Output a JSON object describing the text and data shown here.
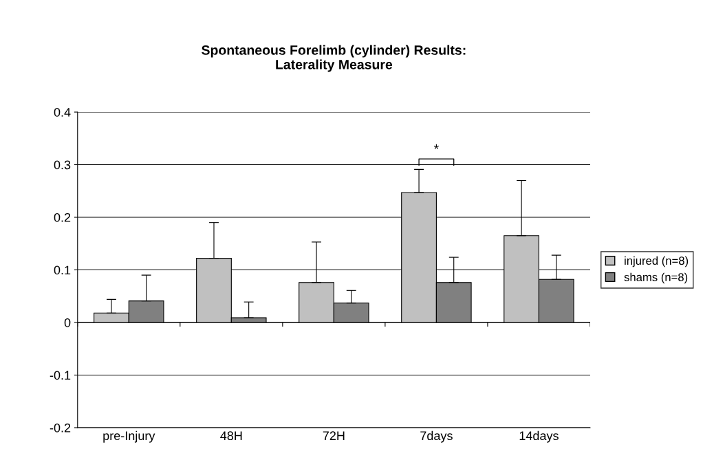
{
  "chart_data": {
    "type": "bar",
    "title": "Spontaneous Forelimb (cylinder) Results:\nLaterality Measure",
    "categories": [
      "pre-Injury",
      "48H",
      "72H",
      "7days",
      "14days"
    ],
    "series": [
      {
        "name": "injured (n=8)",
        "color": "#c0c0c0",
        "values": [
          0.018,
          0.122,
          0.076,
          0.247,
          0.165
        ],
        "errors": [
          [
            0.018,
            0.044
          ],
          [
            0.122,
            0.19
          ],
          [
            0.076,
            0.153
          ],
          [
            0.247,
            0.291
          ],
          [
            0.165,
            0.27
          ]
        ]
      },
      {
        "name": "shams (n=8)",
        "color": "#808080",
        "values": [
          0.041,
          0.009,
          0.037,
          0.076,
          0.082
        ],
        "errors": [
          [
            0.041,
            0.09
          ],
          [
            0.009,
            0.039
          ],
          [
            0.037,
            0.061
          ],
          [
            0.076,
            0.124
          ],
          [
            0.082,
            0.128
          ]
        ]
      }
    ],
    "annotations": [
      "*"
    ],
    "ylim": [
      -0.2,
      0.4
    ],
    "yticks": [
      -0.2,
      -0.1,
      0,
      0.1,
      0.2,
      0.3,
      0.4
    ],
    "grid": "y",
    "legend": "right"
  }
}
